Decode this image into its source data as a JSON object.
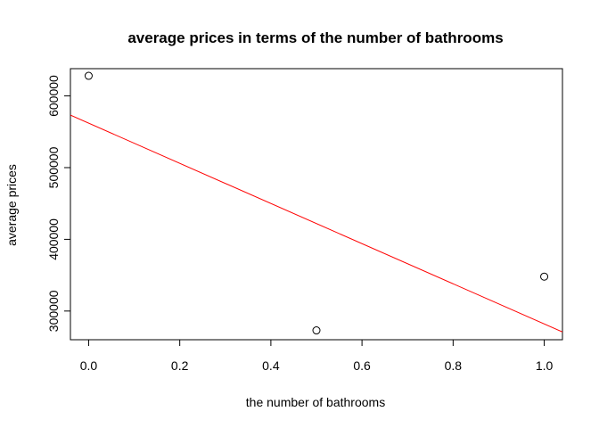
{
  "chart_data": {
    "type": "scatter",
    "title": "average prices in terms of the number of bathrooms",
    "xlabel": "the number of bathrooms",
    "ylabel": "average prices",
    "xlim": [
      -0.04,
      1.04
    ],
    "ylim": [
      260000,
      638000
    ],
    "x_ticks": [
      0.0,
      0.2,
      0.4,
      0.6,
      0.8,
      1.0
    ],
    "x_tick_labels": [
      "0.0",
      "0.2",
      "0.4",
      "0.6",
      "0.8",
      "1.0"
    ],
    "y_ticks": [
      300000,
      400000,
      500000,
      600000
    ],
    "y_tick_labels": [
      "300000",
      "400000",
      "500000",
      "600000"
    ],
    "points": [
      {
        "x": 0.0,
        "y": 628000
      },
      {
        "x": 0.5,
        "y": 273000
      },
      {
        "x": 1.0,
        "y": 348000
      }
    ],
    "regression_line": {
      "intercept": 562000,
      "slope": -280000,
      "color": "#ff0000"
    },
    "point_color": "#000000",
    "grid": false,
    "legend": "none"
  }
}
